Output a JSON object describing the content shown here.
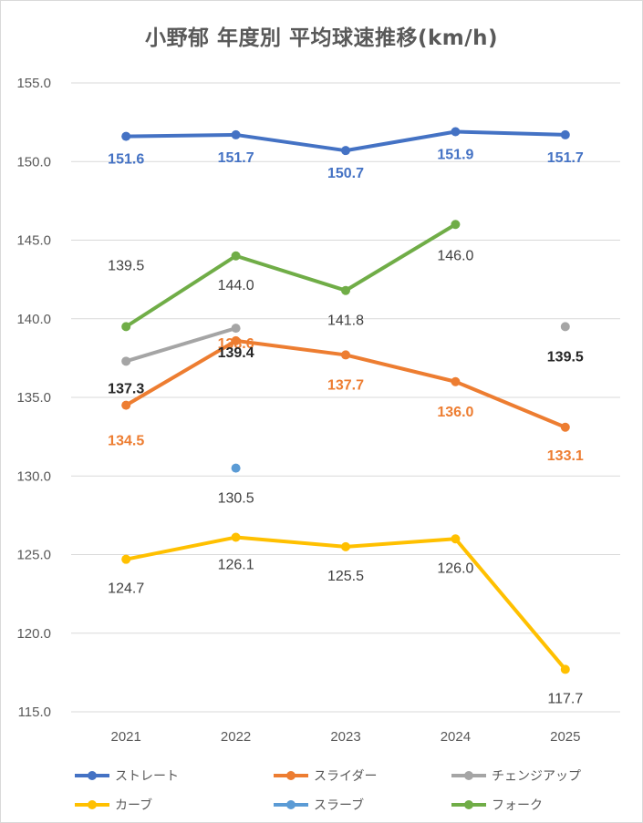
{
  "chart_data": {
    "type": "line",
    "title": "小野郁 年度別 平均球速推移(km/h)",
    "xlabel": "",
    "ylabel": "",
    "categories": [
      "2021",
      "2022",
      "2023",
      "2024",
      "2025"
    ],
    "ylim": [
      115.0,
      155.0
    ],
    "yticks": [
      "155.0",
      "150.0",
      "145.0",
      "140.0",
      "135.0",
      "130.0",
      "125.0",
      "120.0",
      "115.0"
    ],
    "grid": true,
    "legend_position": "bottom",
    "series": [
      {
        "name": "ストレート",
        "color": "#4472C4",
        "values": [
          151.6,
          151.7,
          150.7,
          151.9,
          151.7
        ],
        "labels": [
          "151.6",
          "151.7",
          "150.7",
          "151.9",
          "151.7"
        ],
        "label_color": "#4472C4",
        "label_bold": true
      },
      {
        "name": "スライダー",
        "color": "#ED7D31",
        "values": [
          134.5,
          138.6,
          137.7,
          136.0,
          133.1
        ],
        "labels": [
          "134.5",
          "138.6",
          "137.7",
          "136.0",
          "133.1"
        ],
        "label_color": "#ED7D31",
        "label_bold": true
      },
      {
        "name": "チェンジアップ",
        "color": "#A5A5A5",
        "values": [
          137.3,
          139.4,
          null,
          null,
          139.5
        ],
        "labels": [
          "137.3",
          "139.4",
          null,
          null,
          "139.5"
        ],
        "label_color": "#262626",
        "label_bold": true
      },
      {
        "name": "カーブ",
        "color": "#FFC000",
        "values": [
          124.7,
          126.1,
          125.5,
          126.0,
          117.7
        ],
        "labels": [
          "124.7",
          "126.1",
          "125.5",
          "126.0",
          "117.7"
        ],
        "label_color": "#404040",
        "label_bold": false
      },
      {
        "name": "スラーブ",
        "color": "#5B9BD5",
        "values": [
          null,
          130.5,
          null,
          null,
          null
        ],
        "labels": [
          null,
          "130.5",
          null,
          null,
          null
        ],
        "label_color": "#404040",
        "label_bold": false
      },
      {
        "name": "フォーク",
        "color": "#70AD47",
        "values": [
          139.5,
          144.0,
          141.8,
          146.0,
          null
        ],
        "labels": [
          "139.5",
          "144.0",
          "141.8",
          "146.0",
          null
        ],
        "label_color": "#404040",
        "label_bold": false
      }
    ]
  }
}
